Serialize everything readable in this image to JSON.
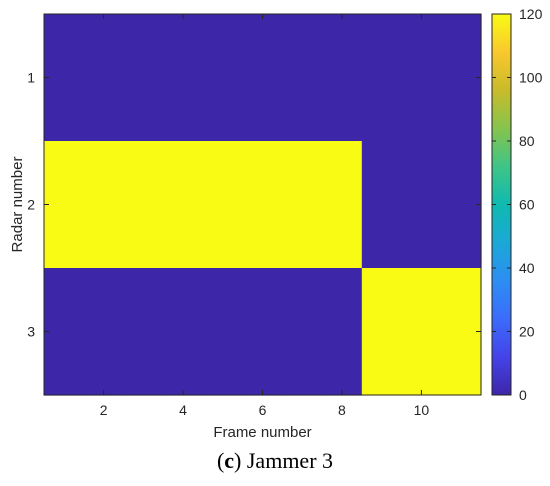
{
  "chart_data": {
    "type": "heatmap",
    "xlabel": "Frame number",
    "ylabel": "Radar number",
    "x": [
      1,
      2,
      3,
      4,
      5,
      6,
      7,
      8,
      9,
      10,
      11
    ],
    "y": [
      1,
      2,
      3
    ],
    "xticks": [
      2,
      4,
      6,
      8,
      10
    ],
    "yticks": [
      1,
      2,
      3
    ],
    "values": [
      [
        0,
        0,
        0,
        0,
        0,
        0,
        0,
        0,
        0,
        0,
        0
      ],
      [
        120,
        120,
        120,
        120,
        120,
        120,
        120,
        120,
        0,
        0,
        0
      ],
      [
        0,
        0,
        0,
        0,
        0,
        0,
        0,
        0,
        120,
        120,
        120
      ]
    ],
    "colorbar": {
      "min": 0,
      "max": 120,
      "ticks": [
        0,
        20,
        40,
        60,
        80,
        100,
        120
      ],
      "colormap": "parula"
    },
    "colors": {
      "low": "#3e26a8",
      "high": "#f9fb15"
    }
  },
  "caption": {
    "letter": "c",
    "open": "(",
    "close": ")",
    "text": " Jammer 3"
  }
}
